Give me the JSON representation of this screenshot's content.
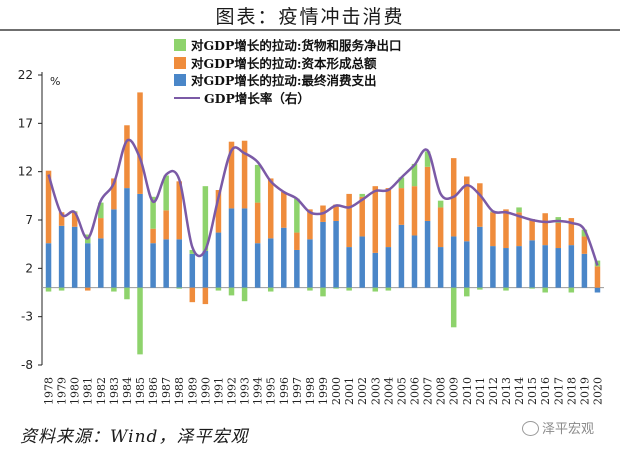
{
  "page": {
    "title": "图表：疫情冲击消费",
    "source": "资料来源：Wind，泽平宏观",
    "watermark": "泽平宏观"
  },
  "chart_data": {
    "type": "bar",
    "stacked": true,
    "unit_label": "%",
    "ylim": [
      -8,
      22
    ],
    "yticks": [
      22,
      17,
      12,
      7,
      2,
      -3,
      -8
    ],
    "grid": false,
    "legend_position": "top",
    "categories": [
      "1978",
      "1979",
      "1980",
      "1981",
      "1982",
      "1983",
      "1984",
      "1985",
      "1986",
      "1987",
      "1988",
      "1989",
      "1990",
      "1991",
      "1992",
      "1993",
      "1994",
      "1995",
      "1996",
      "1997",
      "1998",
      "1999",
      "2000",
      "2001",
      "2002",
      "2003",
      "2004",
      "2005",
      "2006",
      "2007",
      "2008",
      "2009",
      "2010",
      "2011",
      "2012",
      "2013",
      "2014",
      "2015",
      "2016",
      "2017",
      "2018",
      "2019",
      "2020"
    ],
    "series": [
      {
        "name": "对GDP增长的拉动:最终消费支出",
        "color": "#4a86c8",
        "values": [
          4.6,
          6.4,
          6.3,
          4.6,
          5.1,
          8.1,
          10.3,
          9.7,
          4.6,
          5.0,
          5.0,
          3.5,
          3.8,
          5.7,
          8.2,
          8.2,
          4.6,
          5.1,
          6.2,
          3.9,
          5.0,
          6.8,
          6.9,
          4.2,
          5.3,
          3.6,
          4.2,
          6.5,
          5.4,
          6.9,
          4.2,
          5.3,
          4.8,
          6.3,
          4.3,
          4.1,
          4.3,
          4.9,
          4.4,
          4.1,
          4.4,
          3.5,
          -0.5
        ]
      },
      {
        "name": "对GDP增长的拉动:资本形成总额",
        "color": "#ef8c3c",
        "values": [
          7.5,
          1.4,
          1.5,
          -0.3,
          2.1,
          3.2,
          6.5,
          10.5,
          1.5,
          3.0,
          6.0,
          -1.5,
          -1.7,
          4.4,
          6.9,
          7.0,
          4.2,
          6.2,
          3.7,
          1.8,
          3.1,
          1.7,
          1.7,
          5.5,
          4.1,
          6.9,
          6.1,
          3.8,
          5.1,
          5.6,
          4.1,
          8.1,
          6.7,
          4.5,
          3.5,
          4.0,
          3.5,
          2.2,
          3.3,
          2.6,
          2.8,
          1.8,
          2.2
        ]
      },
      {
        "name": "对GDP增长的拉动:货物和服务净出口",
        "color": "#8ed36c",
        "values": [
          -0.4,
          -0.3,
          0.1,
          0.9,
          1.6,
          -0.4,
          -1.2,
          -6.9,
          3.3,
          3.6,
          -0.1,
          0.4,
          6.7,
          -0.3,
          -0.8,
          -1.4,
          3.9,
          -0.4,
          0.0,
          3.5,
          -0.3,
          -0.9,
          -0.1,
          -0.3,
          0.3,
          -0.4,
          -0.3,
          1.1,
          2.3,
          1.6,
          0.7,
          -4.1,
          -0.9,
          -0.2,
          0.1,
          -0.3,
          0.5,
          -0.1,
          -0.5,
          0.6,
          -0.5,
          0.7,
          0.6
        ]
      },
      {
        "name": "GDP增长率（右）",
        "color": "#7b5aa6",
        "type": "line",
        "values": [
          11.7,
          7.6,
          7.8,
          5.1,
          9.0,
          10.8,
          15.2,
          13.4,
          8.9,
          11.7,
          11.2,
          4.2,
          3.9,
          9.3,
          14.2,
          13.9,
          13.0,
          11.0,
          9.9,
          9.2,
          7.8,
          7.7,
          8.5,
          8.3,
          9.1,
          10.0,
          10.1,
          11.4,
          12.7,
          14.2,
          9.7,
          9.4,
          10.6,
          9.6,
          7.9,
          7.8,
          7.4,
          7.0,
          6.8,
          6.9,
          6.7,
          6.0,
          2.3
        ]
      }
    ]
  }
}
